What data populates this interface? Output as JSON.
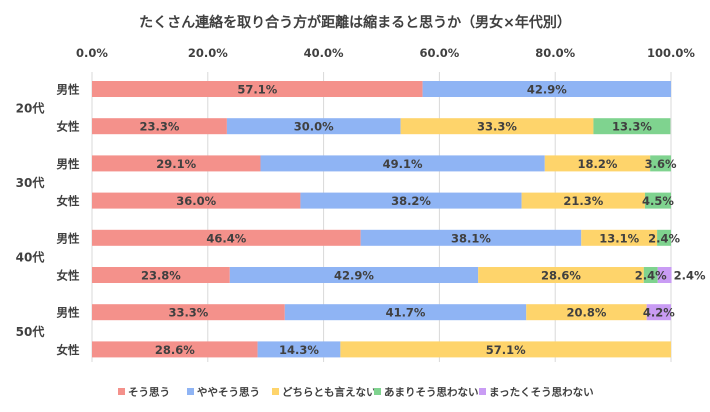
{
  "chart_data": {
    "type": "bar",
    "orientation": "horizontal-stacked-100",
    "title": "たくさん連絡を取り合う方が距離は縮まると思うか（男女×年代別）",
    "xlim": [
      0,
      100
    ],
    "x_ticks": [
      "0.0%",
      "20.0%",
      "40.0%",
      "60.0%",
      "80.0%",
      "100.0%"
    ],
    "grid": "vertical",
    "legend_position": "bottom",
    "groups": [
      "20代",
      "30代",
      "40代",
      "50代"
    ],
    "categories": [
      {
        "group": "20代",
        "sex": "男性"
      },
      {
        "group": "20代",
        "sex": "女性"
      },
      {
        "group": "30代",
        "sex": "男性"
      },
      {
        "group": "30代",
        "sex": "女性"
      },
      {
        "group": "40代",
        "sex": "男性"
      },
      {
        "group": "40代",
        "sex": "女性"
      },
      {
        "group": "50代",
        "sex": "男性"
      },
      {
        "group": "50代",
        "sex": "女性"
      }
    ],
    "series": [
      {
        "name": "そう思う",
        "color": "#f4918b",
        "values": [
          57.1,
          23.3,
          29.1,
          36.0,
          46.4,
          23.8,
          33.3,
          28.6
        ]
      },
      {
        "name": "ややそう思う",
        "color": "#8fb4f4",
        "values": [
          42.9,
          30.0,
          49.1,
          38.2,
          38.1,
          42.9,
          41.7,
          14.3
        ]
      },
      {
        "name": "どちらとも言えない",
        "color": "#fed46b",
        "values": [
          0,
          33.3,
          18.2,
          21.3,
          13.1,
          28.6,
          20.8,
          57.1
        ]
      },
      {
        "name": "あまりそう思わない",
        "color": "#7fd38f",
        "values": [
          0,
          13.3,
          3.6,
          4.5,
          2.4,
          2.4,
          0,
          0
        ]
      },
      {
        "name": "まったくそう思わない",
        "color": "#c99cf4",
        "values": [
          0,
          0,
          0,
          0,
          0,
          2.4,
          4.2,
          0
        ]
      }
    ]
  }
}
